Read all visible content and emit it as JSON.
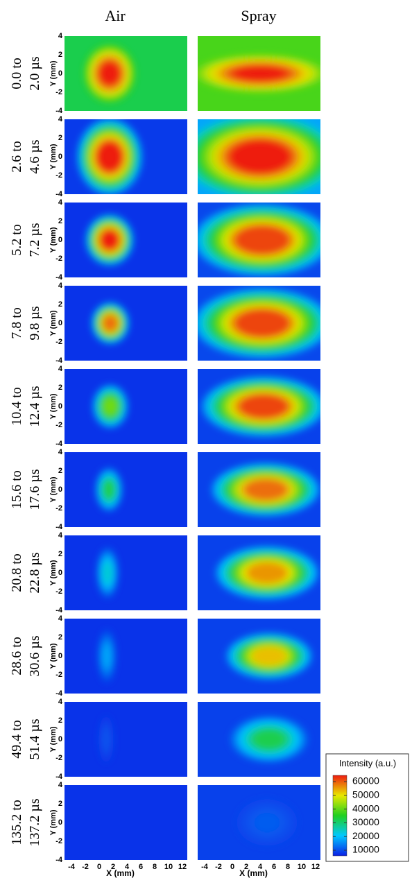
{
  "column_titles": [
    "Air",
    "Spray"
  ],
  "rows": [
    {
      "label": [
        "0.0 to",
        "2.0 µs"
      ]
    },
    {
      "label": [
        "2.6 to",
        "4.6 µs"
      ]
    },
    {
      "label": [
        "5.2 to",
        "7.2 µs"
      ]
    },
    {
      "label": [
        "7.8 to",
        "9.8 µs"
      ]
    },
    {
      "label": [
        "10.4 to",
        "12.4 µs"
      ]
    },
    {
      "label": [
        "15.6 to",
        "17.6 µs"
      ]
    },
    {
      "label": [
        "20.8 to",
        "22.8 µs"
      ]
    },
    {
      "label": [
        "28.6 to",
        "30.6 µs"
      ]
    },
    {
      "label": [
        "49.4 to",
        "51.4 µs"
      ]
    },
    {
      "label": [
        "135.2 to",
        "137.2 µs"
      ]
    }
  ],
  "y_axis": {
    "label": "Y (mm)",
    "ticks": [
      4,
      2,
      0,
      -2,
      -4
    ]
  },
  "x_axis": {
    "label": "X (mm)",
    "ticks": [
      -4,
      -2,
      0,
      2,
      4,
      6,
      8,
      10,
      12
    ]
  },
  "legend": {
    "title": "Intensity (a.u.)",
    "ticks": [
      60000,
      50000,
      40000,
      30000,
      20000,
      10000
    ]
  }
}
